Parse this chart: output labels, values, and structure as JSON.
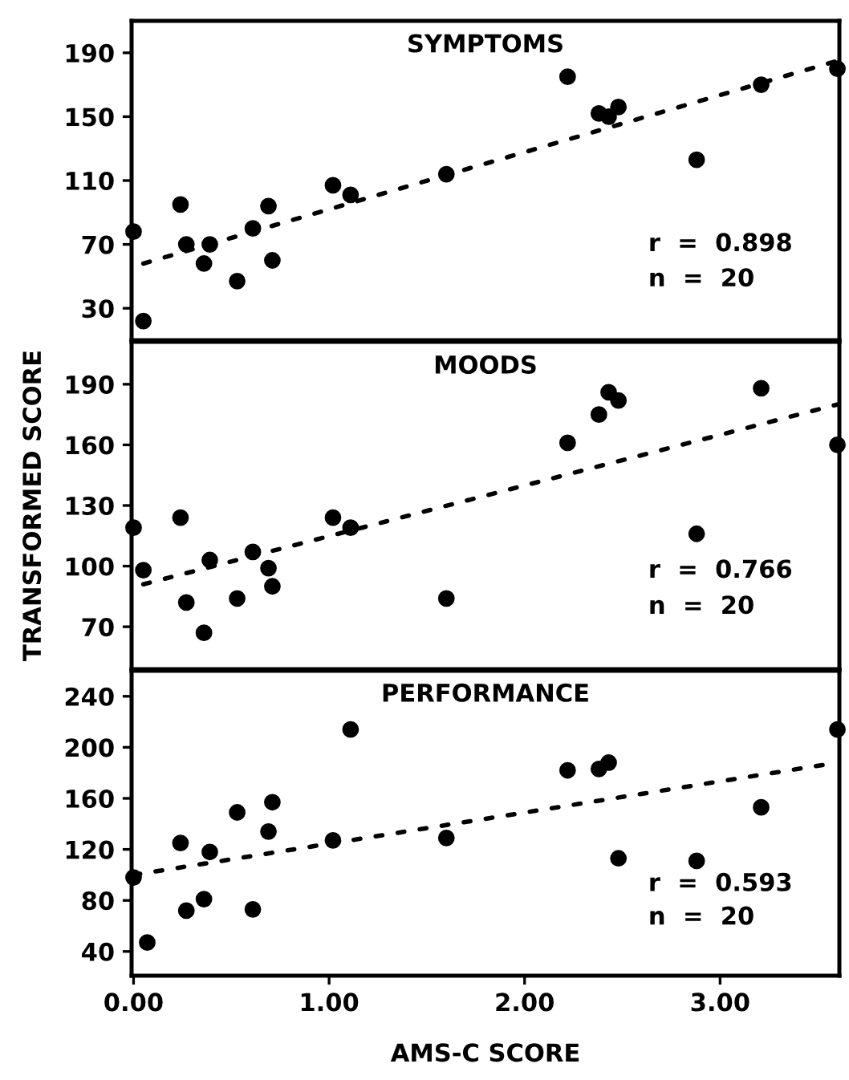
{
  "chart_data": [
    {
      "type": "scatter",
      "title": "SYMPTOMS",
      "xlim": [
        -0.01,
        3.61
      ],
      "ylim": [
        10,
        210
      ],
      "yticks": [
        30,
        70,
        110,
        150,
        190
      ],
      "tick_labels": "y",
      "grid": false,
      "legend": false,
      "annotations": [
        "r  =  0.898",
        "n  =  20"
      ],
      "series": [
        {
          "color": "#000000",
          "marker": "circle",
          "x": [
            0,
            0.05,
            0.24,
            0.27,
            0.39,
            0.36,
            0.53,
            0.61,
            0.69,
            0.71,
            1.02,
            1.11,
            1.6,
            2.22,
            2.38,
            2.43,
            2.48,
            2.88,
            3.21,
            3.6
          ],
          "values": [
            78,
            22,
            95,
            70,
            70,
            58,
            47,
            80,
            94,
            60,
            107,
            101,
            114,
            175,
            152,
            150,
            156,
            123,
            170,
            180
          ]
        },
        {
          "type": "line",
          "line_style": "dotted",
          "marker": "none",
          "color": "#000000",
          "x": [
            0.05,
            3.6
          ],
          "values": [
            58,
            185
          ]
        }
      ]
    },
    {
      "type": "scatter",
      "title": "MOODS",
      "ylabel": "TRANSFORMED SCORE",
      "xlim": [
        -0.01,
        3.61
      ],
      "ylim": [
        49,
        211
      ],
      "yticks": [
        70,
        100,
        130,
        160,
        190
      ],
      "tick_labels": "y",
      "grid": false,
      "legend": false,
      "annotations": [
        "r  =  0.766",
        "n  =  20"
      ],
      "series": [
        {
          "color": "#000000",
          "marker": "circle",
          "x": [
            0,
            0.05,
            0.24,
            0.27,
            0.39,
            0.36,
            0.53,
            0.61,
            0.69,
            0.71,
            1.02,
            1.11,
            1.6,
            2.22,
            2.38,
            2.43,
            2.48,
            2.88,
            3.21,
            3.6
          ],
          "values": [
            119,
            98,
            124,
            82,
            103,
            67,
            84,
            107,
            99,
            90,
            124,
            119,
            84,
            161,
            175,
            186,
            182,
            116,
            188,
            160
          ]
        },
        {
          "type": "line",
          "line_style": "dotted",
          "marker": "none",
          "color": "#000000",
          "x": [
            0.05,
            3.6
          ],
          "values": [
            91,
            180
          ]
        }
      ]
    },
    {
      "type": "scatter",
      "title": "PERFORMANCE",
      "xlabel": "AMS-C SCORE",
      "xlim": [
        -0.01,
        3.61
      ],
      "ylim": [
        21,
        260
      ],
      "xticks": [
        {
          "value": 0,
          "label": "0.00"
        },
        {
          "value": 1,
          "label": "1.00"
        },
        {
          "value": 2,
          "label": "2.00"
        },
        {
          "value": 3,
          "label": "3.00"
        }
      ],
      "yticks": [
        40,
        80,
        120,
        160,
        200,
        240
      ],
      "grid": false,
      "legend": false,
      "annotations": [
        "r  =  0.593",
        "n  =  20"
      ],
      "series": [
        {
          "color": "#000000",
          "marker": "circle",
          "x": [
            0,
            0.07,
            0.24,
            0.27,
            0.36,
            0.39,
            0.53,
            0.61,
            0.69,
            0.71,
            1.02,
            1.11,
            1.6,
            2.22,
            2.38,
            2.43,
            2.48,
            2.88,
            3.21,
            3.6
          ],
          "values": [
            98,
            47,
            125,
            72,
            81,
            118,
            149,
            73,
            134,
            157,
            127,
            214,
            129,
            182,
            183,
            188,
            113,
            111,
            153,
            214
          ]
        },
        {
          "type": "line",
          "line_style": "dotted",
          "marker": "none",
          "color": "#000000",
          "x": [
            0,
            3.6
          ],
          "values": [
            100,
            188
          ]
        }
      ]
    }
  ]
}
